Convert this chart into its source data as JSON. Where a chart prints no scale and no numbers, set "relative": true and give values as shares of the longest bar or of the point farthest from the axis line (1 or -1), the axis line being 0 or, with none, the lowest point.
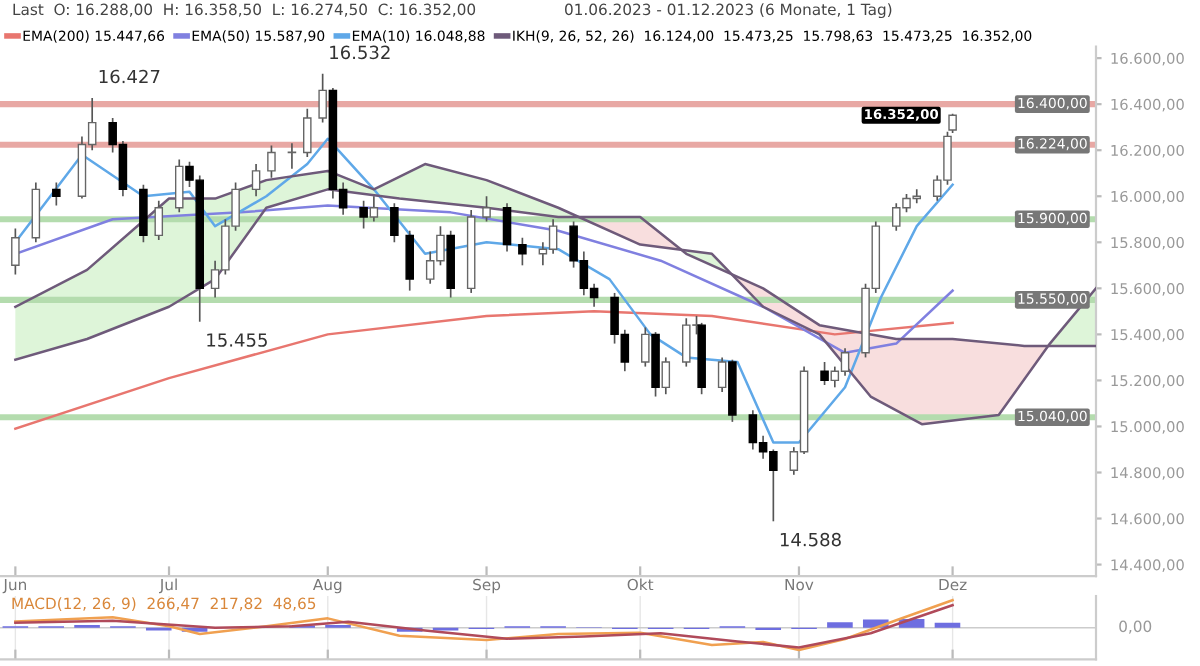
{
  "chart_data": [
    {
      "type": "candlestick",
      "title": "Last  O: 16.288,00  H: 16.358,50  L: 16.274,50  C: 16.352,00",
      "subtitle": "01.06.2023 - 01.12.2023 (6 Monate, 1 Tag)",
      "x": [
        "2023-06-01",
        "2023-06-05",
        "2023-06-09",
        "2023-06-14",
        "2023-06-16",
        "2023-06-20",
        "2023-06-22",
        "2023-06-26",
        "2023-06-29",
        "2023-07-03",
        "2023-07-05",
        "2023-07-07",
        "2023-07-10",
        "2023-07-12",
        "2023-07-14",
        "2023-07-18",
        "2023-07-21",
        "2023-07-25",
        "2023-07-28",
        "2023-07-31",
        "2023-08-02",
        "2023-08-04",
        "2023-08-08",
        "2023-08-10",
        "2023-08-14",
        "2023-08-17",
        "2023-08-21",
        "2023-08-23",
        "2023-08-25",
        "2023-08-29",
        "2023-09-01",
        "2023-09-05",
        "2023-09-08",
        "2023-09-12",
        "2023-09-14",
        "2023-09-18",
        "2023-09-20",
        "2023-09-22",
        "2023-09-26",
        "2023-09-28",
        "2023-10-02",
        "2023-10-04",
        "2023-10-06",
        "2023-10-10",
        "2023-10-12",
        "2023-10-13",
        "2023-10-17",
        "2023-10-19",
        "2023-10-23",
        "2023-10-25",
        "2023-10-27",
        "2023-10-31",
        "2023-11-02",
        "2023-11-06",
        "2023-11-08",
        "2023-11-10",
        "2023-11-14",
        "2023-11-16",
        "2023-11-20",
        "2023-11-22",
        "2023-11-24",
        "2023-11-28",
        "2023-11-30",
        "2023-12-01"
      ],
      "ohlc": [
        [
          15700,
          15860,
          15660,
          15820
        ],
        [
          15820,
          16060,
          15800,
          16030
        ],
        [
          16030,
          16060,
          15960,
          16000
        ],
        [
          16000,
          16260,
          15990,
          16225
        ],
        [
          16225,
          16427,
          16200,
          16320
        ],
        [
          16320,
          16340,
          16190,
          16225
        ],
        [
          16225,
          16240,
          16000,
          16030
        ],
        [
          16030,
          16050,
          15800,
          15830
        ],
        [
          15830,
          15980,
          15810,
          15950
        ],
        [
          15950,
          16160,
          15930,
          16130
        ],
        [
          16130,
          16150,
          16040,
          16070
        ],
        [
          16070,
          16090,
          15455,
          15600
        ],
        [
          15600,
          15720,
          15560,
          15680
        ],
        [
          15680,
          15900,
          15660,
          15870
        ],
        [
          15870,
          16060,
          15850,
          16030
        ],
        [
          16030,
          16140,
          16000,
          16110
        ],
        [
          16110,
          16220,
          16080,
          16190
        ],
        [
          16190,
          16230,
          16120,
          16190
        ],
        [
          16190,
          16380,
          16170,
          16340
        ],
        [
          16340,
          16532,
          16320,
          16460
        ],
        [
          16460,
          16470,
          15990,
          16030
        ],
        [
          16030,
          16060,
          15920,
          15950
        ],
        [
          15950,
          15980,
          15860,
          15910
        ],
        [
          15910,
          16000,
          15890,
          15950
        ],
        [
          15950,
          15970,
          15800,
          15830
        ],
        [
          15830,
          15850,
          15590,
          15640
        ],
        [
          15640,
          15760,
          15620,
          15720
        ],
        [
          15720,
          15870,
          15700,
          15830
        ],
        [
          15830,
          15850,
          15560,
          15600
        ],
        [
          15600,
          15940,
          15580,
          15910
        ],
        [
          15910,
          16000,
          15890,
          15950
        ],
        [
          15950,
          15970,
          15760,
          15790
        ],
        [
          15790,
          15820,
          15700,
          15750
        ],
        [
          15750,
          15800,
          15700,
          15770
        ],
        [
          15770,
          15900,
          15750,
          15870
        ],
        [
          15870,
          15890,
          15690,
          15720
        ],
        [
          15720,
          15760,
          15570,
          15600
        ],
        [
          15600,
          15620,
          15520,
          15560
        ],
        [
          15560,
          15580,
          15360,
          15400
        ],
        [
          15400,
          15420,
          15240,
          15280
        ],
        [
          15280,
          15430,
          15260,
          15400
        ],
        [
          15400,
          15410,
          15130,
          15170
        ],
        [
          15170,
          15300,
          15140,
          15280
        ],
        [
          15280,
          15470,
          15260,
          15440
        ],
        [
          15440,
          15480,
          15400,
          15440
        ],
        [
          15440,
          15450,
          15140,
          15170
        ],
        [
          15170,
          15300,
          15150,
          15280
        ],
        [
          15280,
          15290,
          15020,
          15050
        ],
        [
          15050,
          15070,
          14900,
          14930
        ],
        [
          14930,
          14960,
          14860,
          14890
        ],
        [
          14890,
          14900,
          14588,
          14810
        ],
        [
          14810,
          14910,
          14790,
          14890
        ],
        [
          14890,
          15260,
          14880,
          15240
        ],
        [
          15240,
          15280,
          15180,
          15200
        ],
        [
          15200,
          15260,
          15170,
          15240
        ],
        [
          15240,
          15340,
          15220,
          15320
        ],
        [
          15320,
          15620,
          15300,
          15600
        ],
        [
          15600,
          15890,
          15580,
          15870
        ],
        [
          15870,
          15970,
          15850,
          15950
        ],
        [
          15950,
          16010,
          15930,
          15990
        ],
        [
          15990,
          16030,
          15970,
          16000
        ],
        [
          16000,
          16090,
          15980,
          16070
        ],
        [
          16070,
          16280,
          16050,
          16260
        ],
        [
          16288,
          16358.5,
          16274.5,
          16352
        ]
      ],
      "series": [
        {
          "type": "line",
          "name": "EMA(200) 15.447,66",
          "color": "#e8766f",
          "x": [
            "2023-06-01",
            "2023-07-01",
            "2023-08-01",
            "2023-09-01",
            "2023-09-22",
            "2023-10-15",
            "2023-11-08",
            "2023-12-01"
          ],
          "values": [
            14990,
            15210,
            15400,
            15480,
            15500,
            15480,
            15400,
            15450
          ]
        },
        {
          "type": "line",
          "name": "EMA(50) 15.587,90",
          "color": "#8080e0",
          "x": [
            "2023-06-01",
            "2023-06-20",
            "2023-07-15",
            "2023-08-01",
            "2023-08-25",
            "2023-09-15",
            "2023-10-05",
            "2023-10-25",
            "2023-11-10",
            "2023-11-20",
            "2023-12-01"
          ],
          "values": [
            15750,
            15900,
            15930,
            15960,
            15930,
            15850,
            15720,
            15520,
            15320,
            15360,
            15590
          ]
        },
        {
          "type": "line",
          "name": "EMA(10) 16.048,88",
          "color": "#5fa8e8",
          "x": [
            "2023-06-01",
            "2023-06-14",
            "2023-06-26",
            "2023-07-05",
            "2023-07-10",
            "2023-07-20",
            "2023-07-28",
            "2023-08-01",
            "2023-08-10",
            "2023-08-20",
            "2023-09-01",
            "2023-09-15",
            "2023-09-25",
            "2023-10-03",
            "2023-10-10",
            "2023-10-20",
            "2023-10-27",
            "2023-11-01",
            "2023-11-10",
            "2023-11-17",
            "2023-11-24",
            "2023-12-01"
          ],
          "values": [
            15800,
            16180,
            16000,
            16020,
            15870,
            16000,
            16140,
            16250,
            16030,
            15750,
            15800,
            15770,
            15640,
            15400,
            15300,
            15280,
            14930,
            14930,
            15170,
            15560,
            15870,
            16050
          ]
        },
        {
          "type": "line",
          "name": "IKH(9, 26, 52, 26)  16.124,00  15.473,25  15.798,63  15.473,25  16.352,00",
          "color": "#6e5a7a",
          "x": [
            "2023-06-01",
            "2023-06-15",
            "2023-07-01",
            "2023-07-10",
            "2023-07-20",
            "2023-08-01",
            "2023-08-15",
            "2023-09-01",
            "2023-09-15",
            "2023-10-01",
            "2023-10-10",
            "2023-10-25",
            "2023-11-05",
            "2023-11-20",
            "2023-12-01",
            "2023-12-15",
            "2023-12-29"
          ],
          "values": [
            15290,
            15380,
            15520,
            15640,
            15950,
            16030,
            15990,
            15950,
            15910,
            15910,
            15750,
            15600,
            15440,
            15380,
            15380,
            15350,
            15350
          ]
        },
        {
          "type": "line",
          "color": "#6e5a7a",
          "x": [
            "2023-06-01",
            "2023-06-15",
            "2023-07-01",
            "2023-07-10",
            "2023-07-20",
            "2023-08-01",
            "2023-08-10",
            "2023-08-20",
            "2023-09-01",
            "2023-09-15",
            "2023-10-01",
            "2023-10-15",
            "2023-10-25",
            "2023-11-05",
            "2023-11-15",
            "2023-11-25",
            "2023-12-10",
            "2023-12-20",
            "2023-12-29"
          ],
          "values": [
            15520,
            15680,
            15990,
            15990,
            16070,
            16110,
            16030,
            16140,
            16070,
            15950,
            15790,
            15750,
            15520,
            15400,
            15130,
            15010,
            15050,
            15360,
            15600
          ]
        }
      ],
      "xlim": [
        "2023-05-29",
        "2023-12-29"
      ],
      "xticks": [
        {
          "value": "2023-06-01",
          "label": null
        },
        {
          "value": "2023-07-01",
          "label": null
        },
        {
          "value": "2023-08-01",
          "label": null
        },
        {
          "value": "2023-09-01",
          "label": null
        },
        {
          "value": "2023-10-01",
          "label": null
        },
        {
          "value": "2023-11-01",
          "label": null
        },
        {
          "value": "2023-12-01",
          "label": null
        }
      ],
      "ylim": [
        14350,
        16650
      ],
      "yticks": [
        {
          "value": 14400,
          "label": "14.400,00"
        },
        {
          "value": 14600,
          "label": "14.600,00"
        },
        {
          "value": 14800,
          "label": "14.800,00"
        },
        {
          "value": 15000,
          "label": "15.000,00"
        },
        {
          "value": 15200,
          "label": "15.200,00"
        },
        {
          "value": 15400,
          "label": "15.400,00"
        },
        {
          "value": 15600,
          "label": "15.600,00"
        },
        {
          "value": 15800,
          "label": "15.800,00"
        },
        {
          "value": 16000,
          "label": "16.000,00"
        },
        {
          "value": 16200,
          "label": "16.200,00"
        },
        {
          "value": 16400,
          "label": "16.400,00"
        },
        {
          "value": 16600,
          "label": "16.600,00"
        }
      ],
      "ref_lines": [
        {
          "axis": "y",
          "value": 16400,
          "label": "16.400,00",
          "color": "#e8a8a4"
        },
        {
          "axis": "y",
          "value": 16224,
          "label": "16.224,00",
          "color": "#e8a8a4"
        },
        {
          "axis": "y",
          "value": 15900,
          "label": "15.900,00",
          "color": "#b4dcae"
        },
        {
          "axis": "y",
          "value": 15550,
          "label": "15.550,00",
          "color": "#b4dcae"
        },
        {
          "axis": "y",
          "value": 15040,
          "label": "15.040,00",
          "color": "#b4dcae"
        }
      ],
      "annotations": [
        {
          "text": "16.427",
          "x": "2023-06-16",
          "y": 16427
        },
        {
          "text": "16.532",
          "x": "2023-07-31",
          "y": 16532
        },
        {
          "text": "15.455",
          "x": "2023-07-07",
          "y": 15455
        },
        {
          "text": "14.588",
          "x": "2023-10-27",
          "y": 14588
        },
        {
          "text": "16.352,00",
          "x": "2023-12-01",
          "y": 16352
        }
      ],
      "legend": "top",
      "grid": false,
      "tick_labels": "y"
    },
    {
      "type": "line",
      "relative": true,
      "grid": "x",
      "tick_labels": "x",
      "xlim": [
        "2023-05-29",
        "2023-12-29"
      ],
      "xticks": [
        {
          "value": "2023-06-01",
          "label": "Jun"
        },
        {
          "value": "2023-07-01",
          "label": "Jul"
        },
        {
          "value": "2023-08-01",
          "label": "Aug"
        },
        {
          "value": "2023-09-01",
          "label": "Sep"
        },
        {
          "value": "2023-10-01",
          "label": "Okt"
        },
        {
          "value": "2023-11-01",
          "label": "Nov"
        },
        {
          "value": "2023-12-01",
          "label": "Dez"
        }
      ],
      "series": [
        {
          "type": "bar",
          "color": "#6e6ee0",
          "x": [
            "2023-06-01",
            "2023-06-08",
            "2023-06-15",
            "2023-06-22",
            "2023-06-29",
            "2023-07-06",
            "2023-07-13",
            "2023-07-20",
            "2023-07-27",
            "2023-08-03",
            "2023-08-10",
            "2023-08-17",
            "2023-08-24",
            "2023-08-31",
            "2023-09-07",
            "2023-09-14",
            "2023-09-21",
            "2023-09-28",
            "2023-10-05",
            "2023-10-12",
            "2023-10-19",
            "2023-10-26",
            "2023-11-02",
            "2023-11-09",
            "2023-11-16",
            "2023-11-23",
            "2023-11-30"
          ],
          "values": [
            0.05,
            0.05,
            0.1,
            0.05,
            -0.1,
            -0.15,
            0.0,
            null,
            0.08,
            0.1,
            null,
            -0.15,
            -0.1,
            -0.05,
            0.05,
            0.05,
            0.02,
            -0.05,
            -0.05,
            -0.05,
            0.05,
            -0.08,
            -0.05,
            0.2,
            0.3,
            0.32,
            0.18
          ]
        },
        {
          "type": "line",
          "color": "#f0a050",
          "x": [
            "2023-06-01",
            "2023-06-20",
            "2023-07-01",
            "2023-07-07",
            "2023-07-20",
            "2023-08-01",
            "2023-08-15",
            "2023-09-01",
            "2023-09-15",
            "2023-10-01",
            "2023-10-15",
            "2023-10-25",
            "2023-11-01",
            "2023-11-10",
            "2023-11-20",
            "2023-12-01"
          ],
          "values": [
            0.23,
            0.38,
            0.05,
            -0.23,
            0.05,
            0.34,
            -0.29,
            -0.45,
            -0.23,
            -0.18,
            -0.63,
            -0.52,
            -0.81,
            -0.41,
            0.27,
            1.0
          ]
        },
        {
          "type": "line",
          "color": "#b04a5a",
          "x": [
            "2023-06-01",
            "2023-06-20",
            "2023-07-10",
            "2023-07-25",
            "2023-08-05",
            "2023-08-20",
            "2023-09-05",
            "2023-09-20",
            "2023-10-05",
            "2023-10-20",
            "2023-11-01",
            "2023-11-15",
            "2023-12-01"
          ],
          "values": [
            0.18,
            0.25,
            0.0,
            0.05,
            0.22,
            -0.1,
            -0.4,
            -0.32,
            -0.2,
            -0.5,
            -0.72,
            -0.2,
            0.82
          ]
        }
      ],
      "annotations": [
        "MACD(12, 26, 9)  266,47  217,82  48,65",
        "0,00"
      ]
    }
  ]
}
